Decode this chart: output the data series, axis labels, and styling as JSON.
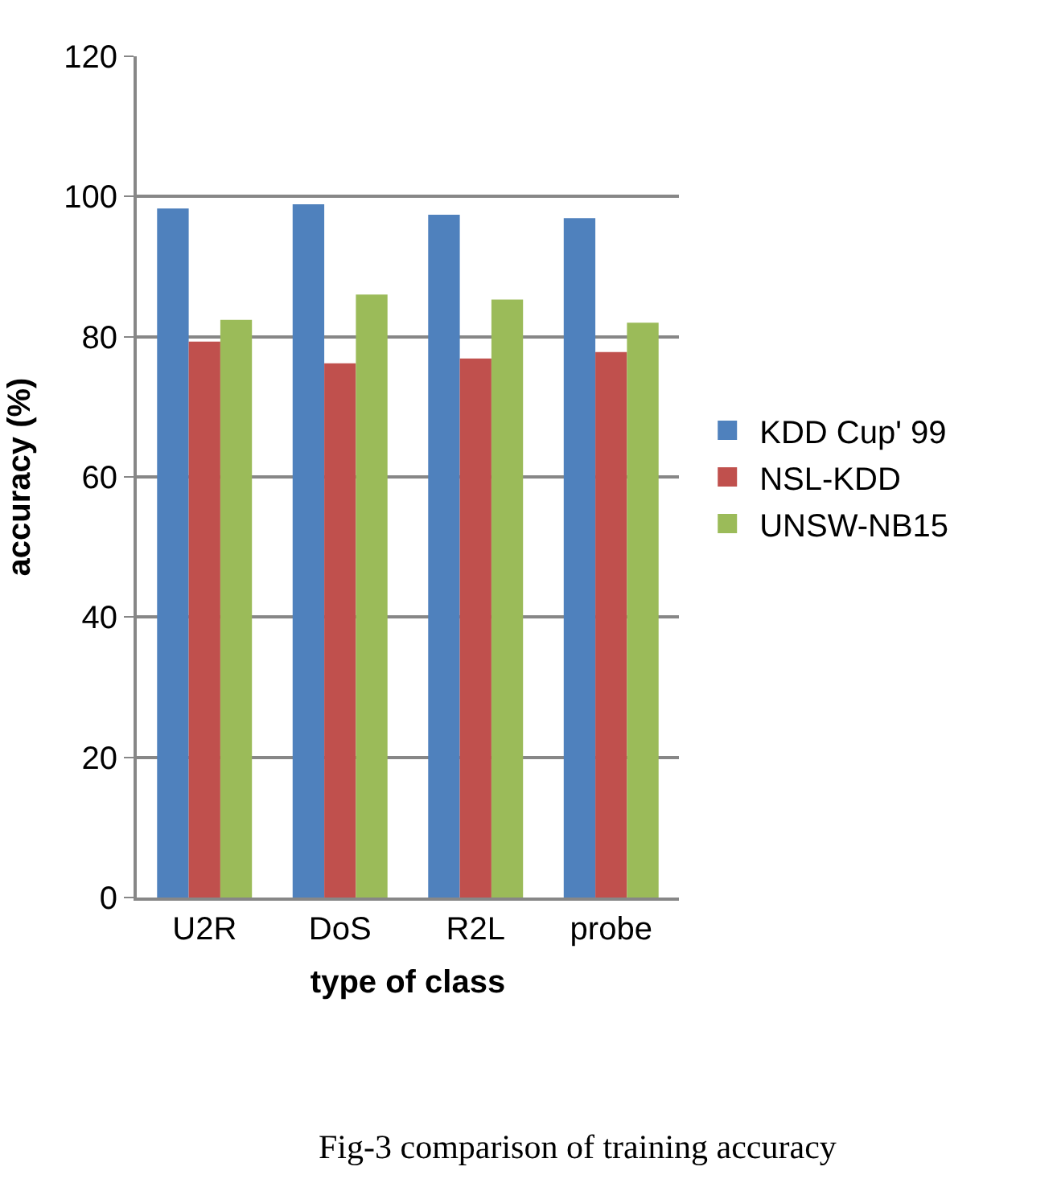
{
  "chart_data": {
    "type": "bar",
    "categories": [
      "U2R",
      "DoS",
      "R2L",
      "probe"
    ],
    "series": [
      {
        "name": "KDD Cup' 99",
        "color": "#4f81bd",
        "values": [
          98.3,
          98.9,
          97.4,
          96.9
        ]
      },
      {
        "name": "NSL-KDD",
        "color": "#c0504d",
        "values": [
          79.3,
          76.2,
          76.9,
          77.8
        ]
      },
      {
        "name": "UNSW-NB15",
        "color": "#9bbb59",
        "values": [
          82.4,
          86.0,
          85.3,
          82.0
        ]
      }
    ],
    "xlabel": "type of class",
    "ylabel": "accuracy (%)",
    "ylim": [
      0,
      120
    ],
    "yticks": [
      0,
      20,
      40,
      60,
      80,
      100,
      120
    ],
    "grid": "y",
    "legend": "right",
    "annotations": [
      "Fig-3 comparison of training accuracy"
    ]
  }
}
